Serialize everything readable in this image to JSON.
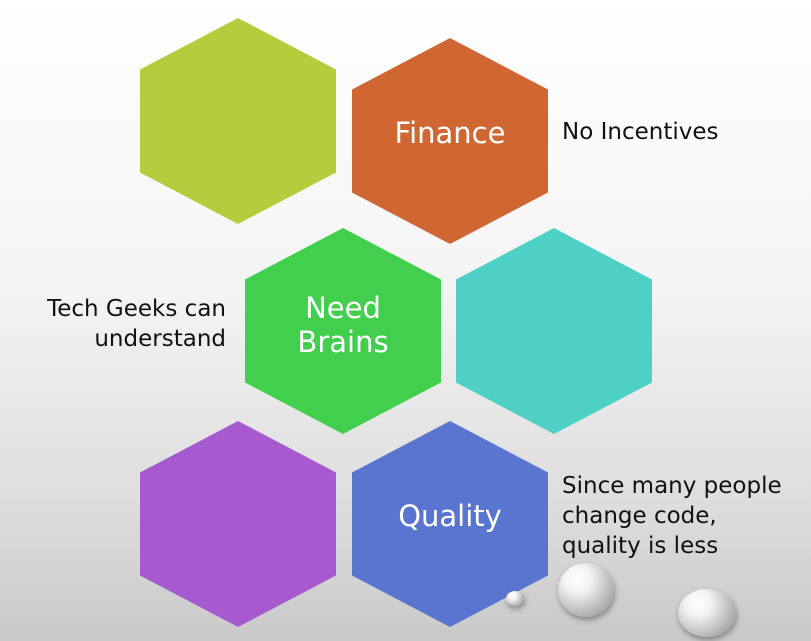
{
  "hexagons": [
    {
      "id": "green-top",
      "label": "",
      "color": "#b5cd3c"
    },
    {
      "id": "finance",
      "label": "Finance",
      "color": "#d06632"
    },
    {
      "id": "need-brains",
      "label": "Need\nBrains",
      "color": "#43cf4e"
    },
    {
      "id": "teal",
      "label": "",
      "color": "#4ed1c4"
    },
    {
      "id": "purple",
      "label": "",
      "color": "#a75ad0"
    },
    {
      "id": "quality",
      "label": "Quality",
      "color": "#5975cf"
    }
  ],
  "annotations": {
    "finance_note": "No Incentives",
    "brains_note": "Tech Geeks can\nunderstand",
    "quality_note": "Since many people\nchange code,\nquality is less"
  }
}
